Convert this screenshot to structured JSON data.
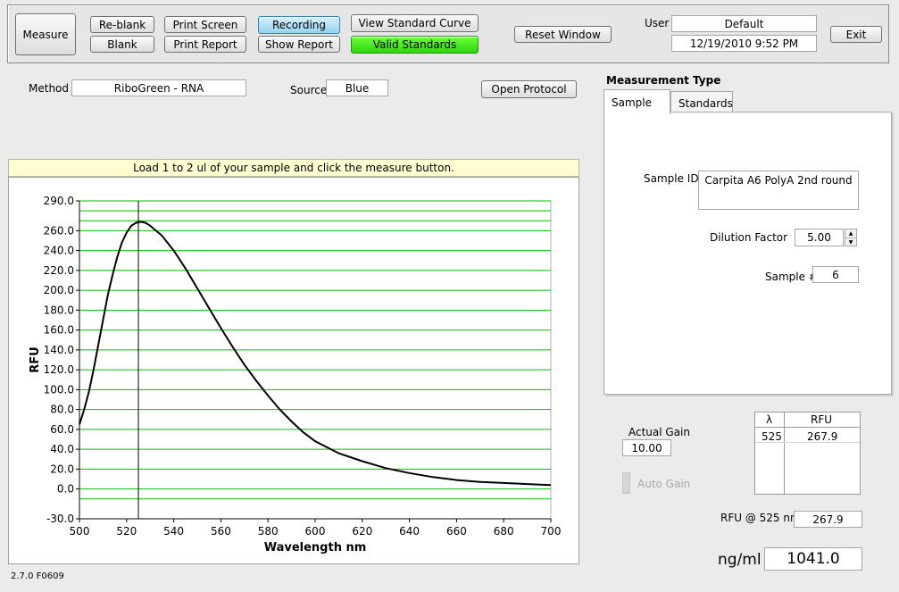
{
  "toolbar": {
    "measure": "Measure",
    "reblank": "Re-blank",
    "blank": "Blank",
    "print_screen": "Print Screen",
    "print_report": "Print Report",
    "recording": "Recording",
    "show_report": "Show Report",
    "view_standard_curve": "View Standard Curve",
    "valid_standards": "Valid Standards",
    "reset_window": "Reset Window",
    "user_label": "User",
    "user_value": "Default",
    "datetime": "12/19/2010  9:52 PM",
    "exit": "Exit"
  },
  "method": {
    "label": "Method",
    "value": "RiboGreen - RNA"
  },
  "source": {
    "label": "Source",
    "value": "Blue"
  },
  "open_protocol": "Open Protocol",
  "message": "Load 1 to 2 ul of your sample and click the measure button.",
  "measurement_type": {
    "title": "Measurement Type",
    "tabs": [
      "Sample",
      "Standards"
    ],
    "sample_id_label": "Sample ID",
    "sample_id": "Carpita A6 PolyA 2nd round",
    "dilution_label": "Dilution Factor",
    "dilution": "5.00",
    "sample_num_label": "Sample #",
    "sample_num": "6"
  },
  "gain": {
    "actual_label": "Actual Gain",
    "actual": "10.00",
    "auto_label": "Auto Gain"
  },
  "rfu_table": {
    "headers": [
      "λ",
      "RFU"
    ],
    "rows": [
      [
        "525",
        "267.9"
      ]
    ]
  },
  "rfu_at": {
    "label": "RFU @ 525 nm",
    "value": "267.9"
  },
  "conc": {
    "unit": "ng/ml",
    "value": "1041.0"
  },
  "version": "2.7.0 F0609",
  "colors": {
    "grid": "#00c000",
    "curve": "#000000",
    "message_bg": "#fffed0"
  },
  "chart_data": {
    "type": "line",
    "xlabel": "Wavelength  nm",
    "ylabel": "RFU",
    "xlim": [
      500,
      700
    ],
    "ylim": [
      -30,
      290
    ],
    "x_ticks": [
      500,
      520,
      540,
      560,
      580,
      600,
      620,
      640,
      660,
      680,
      700
    ],
    "y_ticks": [
      -30,
      0,
      20,
      40,
      60,
      80,
      100,
      120,
      140,
      160,
      180,
      200,
      220,
      240,
      260,
      290
    ],
    "x_tick_labels": [
      "500",
      "520",
      "540",
      "560",
      "580",
      "600",
      "620",
      "640",
      "660",
      "680",
      "700"
    ],
    "y_tick_labels": [
      "-30.0",
      "0.0",
      "20.0",
      "40.0",
      "60.0",
      "80.0",
      "100.0",
      "120.0",
      "140.0",
      "160.0",
      "180.0",
      "200.0",
      "220.0",
      "240.0",
      "260.0",
      "290.0"
    ],
    "cursor_x": 525,
    "grid": true,
    "series": [
      {
        "x": [
          500,
          502,
          504,
          506,
          508,
          510,
          512,
          514,
          516,
          518,
          520,
          522,
          524,
          526,
          528,
          530,
          535,
          540,
          545,
          550,
          555,
          560,
          565,
          570,
          575,
          580,
          585,
          590,
          595,
          600,
          605,
          610,
          620,
          630,
          640,
          650,
          660,
          670,
          680,
          690,
          700
        ],
        "y": [
          65,
          80,
          98,
          120,
          145,
          170,
          195,
          215,
          233,
          248,
          258,
          265,
          268,
          269,
          268,
          265,
          255,
          240,
          222,
          202,
          182,
          162,
          143,
          125,
          109,
          94,
          80,
          68,
          57,
          48,
          42,
          36,
          28,
          21,
          16,
          12,
          9,
          7,
          6,
          5,
          4
        ]
      }
    ]
  }
}
